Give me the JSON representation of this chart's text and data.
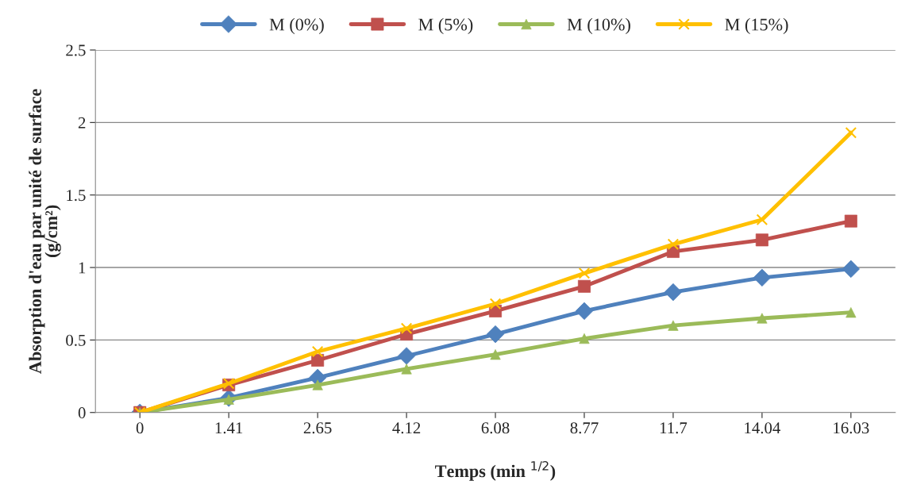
{
  "chart_data": {
    "type": "line",
    "xlabel": "Temps (min $^{1/2}$)",
    "ylabel": "Absorption d'eau par unité de surface\n(g/cm²)",
    "categories": [
      "0",
      "1.41",
      "2.65",
      "4.12",
      "6.08",
      "8.77",
      "11.7",
      "14.04",
      "16.03"
    ],
    "series": [
      {
        "name": "M (0%)",
        "color": "#4f81bd",
        "marker": "diamond",
        "values": [
          0,
          0.1,
          0.24,
          0.39,
          0.54,
          0.7,
          0.83,
          0.93,
          0.99
        ]
      },
      {
        "name": "M (5%)",
        "color": "#c0504d",
        "marker": "square",
        "values": [
          0,
          0.19,
          0.36,
          0.54,
          0.7,
          0.87,
          1.11,
          1.19,
          1.32
        ]
      },
      {
        "name": "M (10%)",
        "color": "#9bbb59",
        "marker": "triangle",
        "values": [
          0,
          0.09,
          0.19,
          0.3,
          0.4,
          0.51,
          0.6,
          0.65,
          0.69
        ]
      },
      {
        "name": "M (15%)",
        "color": "#ffc000",
        "marker": "cross",
        "values": [
          0,
          0.2,
          0.42,
          0.58,
          0.75,
          0.96,
          1.16,
          1.33,
          1.93
        ]
      }
    ],
    "ylim": [
      0,
      2.5
    ],
    "yticks": [
      0,
      0.5,
      1,
      1.5,
      2,
      2.5
    ],
    "grid": "y",
    "legend": "top"
  }
}
